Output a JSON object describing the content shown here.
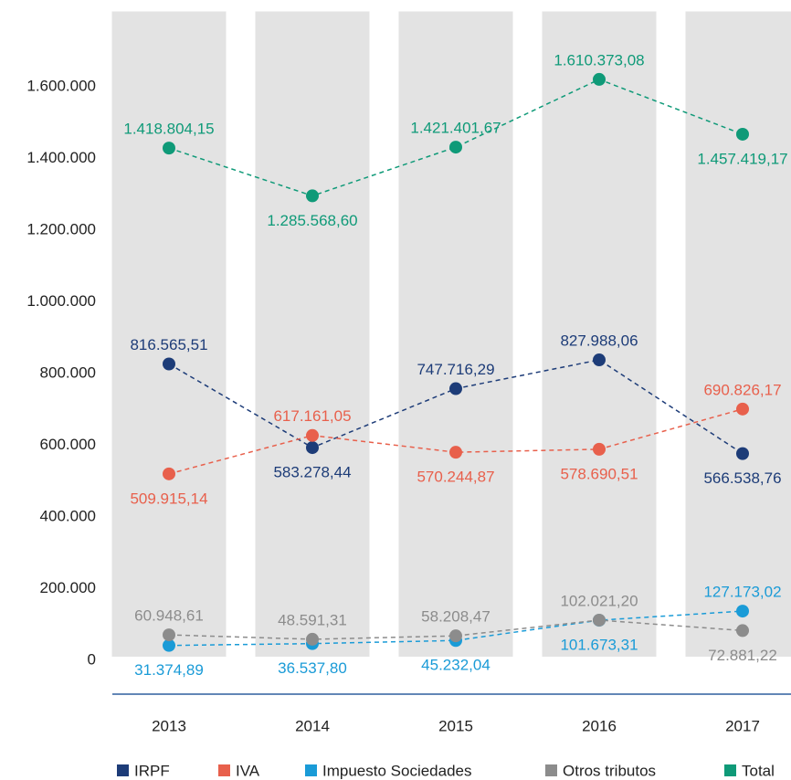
{
  "chart_data": {
    "type": "line",
    "categories": [
      "2013",
      "2014",
      "2015",
      "2016",
      "2017"
    ],
    "ylim": [
      0,
      1800000
    ],
    "yticks": [
      0,
      {
        "value": 200000,
        "label": "200.000"
      },
      {
        "value": 400000,
        "label": "400.000"
      },
      {
        "value": 600000,
        "label": "600.000"
      },
      {
        "value": 800000,
        "label": "800.000"
      },
      {
        "value": 1000000,
        "label": "1.000.000"
      },
      {
        "value": 1200000,
        "label": "1.200.000"
      },
      {
        "value": 1400000,
        "label": "1.400.000"
      },
      {
        "value": 1600000,
        "label": "1.600.000"
      }
    ],
    "grid": false,
    "legend": "bottom",
    "series": [
      {
        "name": "IRPF",
        "color": "#1d3c78",
        "values": [
          816565.51,
          583278.44,
          747716.29,
          827988.06,
          566538.76
        ],
        "value_labels": [
          "816.565,51",
          "583.278,44",
          "747.716,29",
          "827.988,06",
          "566.538,76"
        ]
      },
      {
        "name": "IVA",
        "color": "#e8604c",
        "values": [
          509915.14,
          617161.05,
          570244.87,
          578690.51,
          690826.17
        ],
        "value_labels": [
          "509.915,14",
          "617.161,05",
          "570.244,87",
          "578.690,51",
          "690.826,17"
        ]
      },
      {
        "name": "Impuesto Sociedades",
        "color": "#1a9bd7",
        "values": [
          31374.89,
          36537.8,
          45232.04,
          101673.31,
          127173.02
        ],
        "value_labels": [
          "31.374,89",
          "36.537,80",
          "45.232,04",
          "101.673,31",
          "127.173,02"
        ]
      },
      {
        "name": "Otros tributos",
        "color": "#8c8c8c",
        "values": [
          60948.61,
          48591.31,
          58208.47,
          102021.2,
          72881.22
        ],
        "value_labels": [
          "60.948,61",
          "48.591,31",
          "58.208,47",
          "102.021,20",
          "72.881,22"
        ]
      },
      {
        "name": "Total",
        "color": "#0f9a78",
        "values": [
          1418804.15,
          1285568.6,
          1421401.67,
          1610373.08,
          1457419.17
        ],
        "value_labels": [
          "1.418.804,15",
          "1.285.568,60",
          "1.421.401,67",
          "1.610.373,08",
          "1.457.419,17"
        ]
      }
    ]
  }
}
